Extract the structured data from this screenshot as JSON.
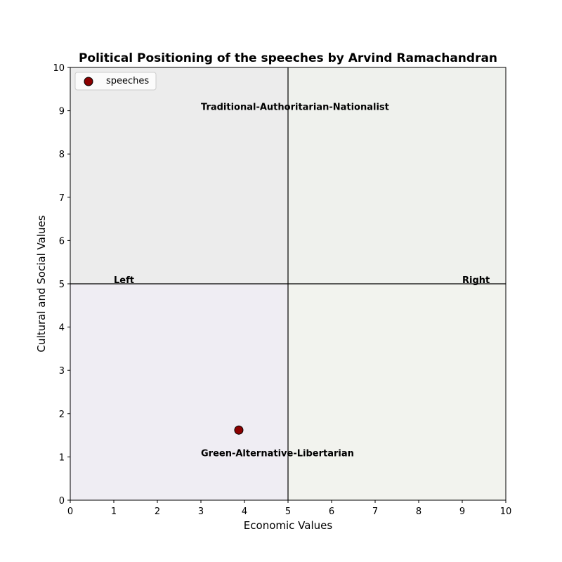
{
  "chart_data": {
    "type": "scatter",
    "title": "Political Positioning of the speeches by Arvind Ramachandran",
    "xlabel": "Economic Values",
    "ylabel": "Cultural and Social Values",
    "xlim": [
      0,
      10
    ],
    "ylim": [
      0,
      10
    ],
    "xticks": [
      0,
      1,
      2,
      3,
      4,
      5,
      6,
      7,
      8,
      9,
      10
    ],
    "yticks": [
      0,
      1,
      2,
      3,
      4,
      5,
      6,
      7,
      8,
      9,
      10
    ],
    "grid": false,
    "legend_position": "top-left",
    "quadrant_colors": {
      "top_left": "#ececec",
      "top_right": "#eff1ed",
      "bottom_left": "#efedf3",
      "bottom_right": "#f2f3ee"
    },
    "divider_lines": {
      "x": 5,
      "y": 5
    },
    "series": [
      {
        "name": "speeches",
        "color": "#8b0000",
        "edge_color": "#000000",
        "points": [
          {
            "x": 3.87,
            "y": 1.62
          }
        ]
      }
    ],
    "annotations": [
      {
        "text": "Traditional-Authoritarian-Nationalist",
        "x": 3,
        "y": 9
      },
      {
        "text": "Green-Alternative-Libertarian",
        "x": 3,
        "y": 1
      },
      {
        "text": "Left",
        "x": 1,
        "y": 5
      },
      {
        "text": "Right",
        "x": 9,
        "y": 5
      }
    ]
  }
}
